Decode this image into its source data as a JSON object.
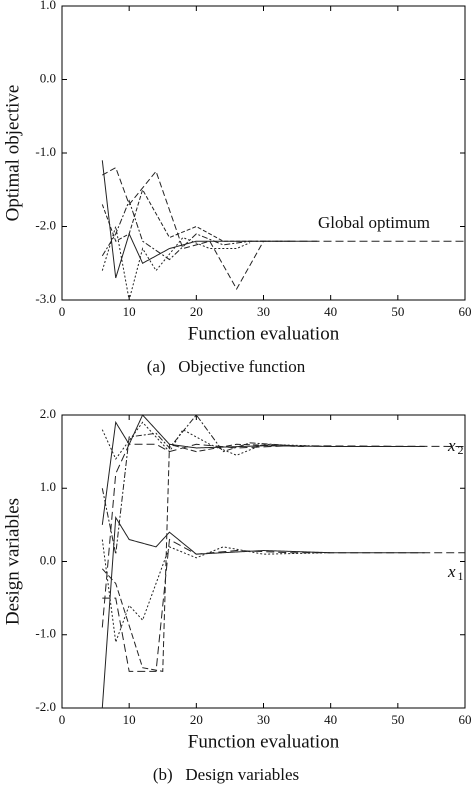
{
  "chart_data": [
    {
      "type": "line",
      "caption": "(a)   Objective function",
      "x_label": "Function evaluation",
      "y_label": "Optimal objective",
      "xlim": [
        0,
        60
      ],
      "xticks": [
        0,
        10,
        20,
        30,
        40,
        50,
        60
      ],
      "ylim": [
        -3,
        1
      ],
      "yticks": [
        {
          "value": -3,
          "label": "-3.0"
        },
        {
          "value": -2,
          "label": "-2.0"
        },
        {
          "value": -1,
          "label": "-1.0"
        },
        {
          "value": 0,
          "label": "0.0"
        },
        {
          "value": 1,
          "label": "1.0"
        }
      ],
      "annotations": [
        {
          "text": "Global optimum"
        }
      ],
      "series": [
        {
          "color": "#222",
          "dash": "1 0",
          "x": [
            6,
            8,
            10,
            12,
            16,
            20,
            24,
            30,
            38
          ],
          "values": [
            -1.1,
            -2.7,
            -2.1,
            -2.5,
            -2.3,
            -2.2,
            -2.2,
            -2.2,
            -2.2
          ]
        },
        {
          "color": "#222",
          "dash": "6 3",
          "x": [
            6,
            8,
            10,
            14,
            18,
            22,
            26,
            30
          ],
          "values": [
            -1.3,
            -1.2,
            -1.7,
            -1.25,
            -2.3,
            -2.2,
            -2.85,
            -2.2
          ]
        },
        {
          "color": "#222",
          "dash": "6 2 2 2",
          "x": [
            6,
            8,
            10,
            12,
            16,
            20,
            24,
            28,
            34
          ],
          "values": [
            -2.4,
            -2.1,
            -1.65,
            -2.2,
            -2.45,
            -2.1,
            -2.25,
            -2.2,
            -2.2
          ]
        },
        {
          "color": "#222",
          "dash": "2 2",
          "x": [
            6,
            8,
            10,
            12,
            14,
            18,
            22,
            26,
            28
          ],
          "values": [
            -2.6,
            -2.0,
            -3.0,
            -2.3,
            -2.6,
            -2.15,
            -2.3,
            -2.3,
            -2.22
          ]
        },
        {
          "color": "#222",
          "dash": "4 2",
          "x": [
            6,
            8,
            10,
            12,
            16,
            20,
            24,
            28,
            30
          ],
          "values": [
            -1.7,
            -2.2,
            -2.1,
            -1.5,
            -2.15,
            -2.0,
            -2.2,
            -2.2,
            -2.2
          ]
        },
        {
          "color": "#222",
          "dash": "8 4",
          "x": [
            30,
            60
          ],
          "values": [
            -2.2,
            -2.2
          ]
        }
      ]
    },
    {
      "type": "line",
      "caption": "(b)   Design variables",
      "x_label": "Function evaluation",
      "y_label": "Design variables",
      "xlim": [
        0,
        60
      ],
      "xticks": [
        0,
        10,
        20,
        30,
        40,
        50,
        60
      ],
      "ylim": [
        -2,
        2
      ],
      "yticks": [
        {
          "value": -2,
          "label": "-2.0"
        },
        {
          "value": -1,
          "label": "-1.0"
        },
        {
          "value": 0,
          "label": "0.0"
        },
        {
          "value": 1,
          "label": "1.0"
        },
        {
          "value": 2,
          "label": "2.0"
        }
      ],
      "annotations": [
        {
          "text": "x",
          "sub": "2"
        },
        {
          "text": "x",
          "sub": "1"
        }
      ],
      "series": [
        {
          "color": "#222",
          "dash": "1 0",
          "x": [
            6,
            8,
            10,
            12,
            16,
            20,
            30,
            40,
            54
          ],
          "values": [
            0.5,
            1.9,
            1.6,
            2.0,
            1.6,
            1.55,
            1.58,
            1.57,
            1.57
          ]
        },
        {
          "color": "#222",
          "dash": "8 4",
          "x": [
            6,
            8,
            10,
            14,
            16,
            20,
            26,
            34,
            60
          ],
          "values": [
            -0.9,
            1.2,
            1.6,
            1.6,
            1.5,
            1.6,
            1.55,
            1.58,
            1.57
          ]
        },
        {
          "color": "#222",
          "dash": "2 2",
          "x": [
            6,
            8,
            12,
            16,
            18,
            22,
            26,
            30,
            40
          ],
          "values": [
            1.8,
            1.4,
            1.9,
            1.5,
            1.8,
            1.6,
            1.45,
            1.6,
            1.57
          ]
        },
        {
          "color": "#222",
          "dash": "6 2 2 2",
          "x": [
            6,
            8,
            10,
            14,
            16,
            20,
            24,
            28,
            36
          ],
          "values": [
            1.0,
            0.1,
            1.7,
            1.75,
            1.55,
            2.0,
            1.5,
            1.62,
            1.57
          ]
        },
        {
          "color": "#222",
          "dash": "1 0",
          "x": [
            6,
            8,
            10,
            14,
            16,
            20,
            30,
            40,
            54
          ],
          "values": [
            -2.0,
            0.6,
            0.3,
            0.2,
            0.4,
            0.1,
            0.15,
            0.12,
            0.12
          ]
        },
        {
          "color": "#222",
          "dash": "8 4",
          "x": [
            6,
            8,
            10,
            14,
            16,
            20,
            26,
            34,
            60
          ],
          "values": [
            -0.5,
            -0.5,
            -1.5,
            -1.5,
            0.3,
            0.1,
            0.15,
            0.12,
            0.12
          ]
        },
        {
          "color": "#222",
          "dash": "2 2",
          "x": [
            6,
            8,
            10,
            12,
            16,
            20,
            24,
            30,
            40
          ],
          "values": [
            0.3,
            -1.1,
            -0.6,
            -0.8,
            0.2,
            0.05,
            0.2,
            0.1,
            0.12
          ]
        },
        {
          "color": "#222",
          "dash": "6 3",
          "x": [
            6,
            8,
            12,
            15,
            16,
            20,
            26,
            36
          ],
          "values": [
            -0.1,
            -0.3,
            -1.45,
            -1.5,
            1.6,
            1.5,
            1.6,
            1.57
          ]
        }
      ]
    }
  ]
}
